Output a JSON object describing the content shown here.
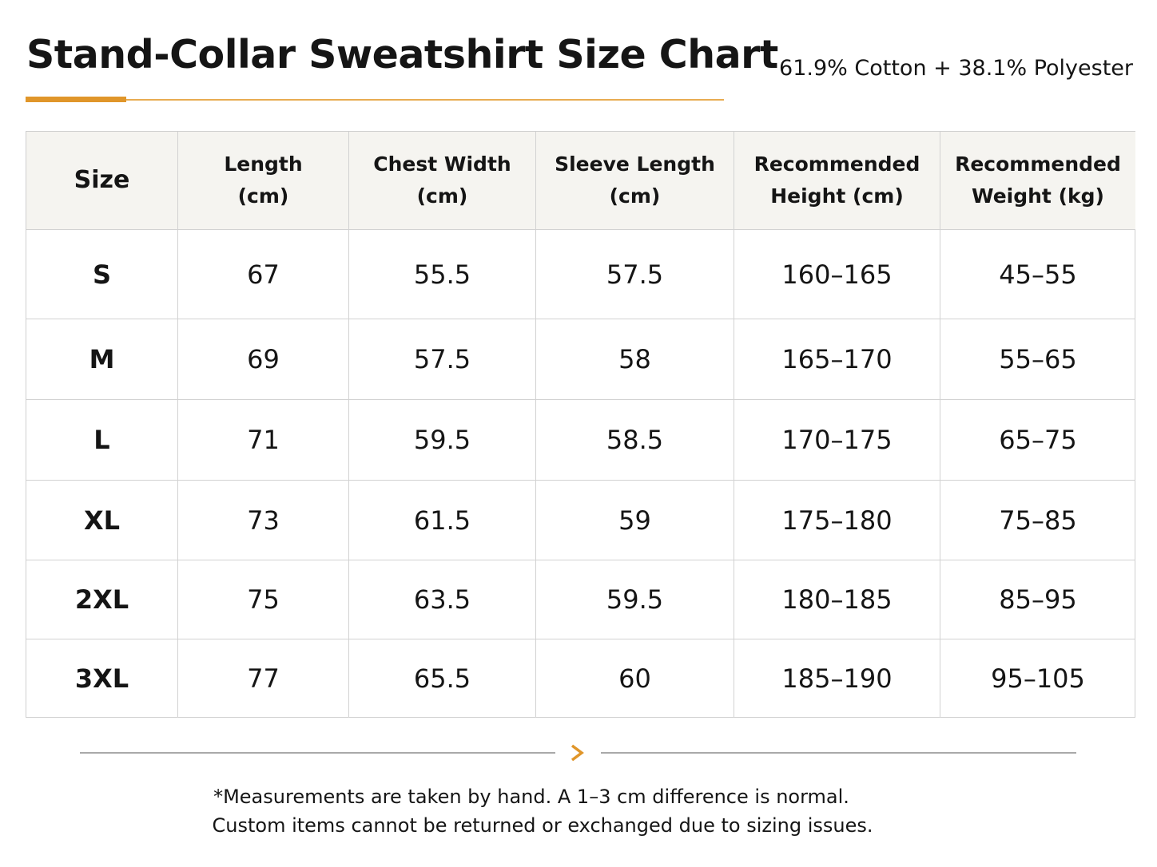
{
  "header": {
    "title": "Stand-Collar Sweatshirt Size Chart",
    "subtitle": "61.9% Cotton + 38.1% Polyester"
  },
  "table": {
    "headers": [
      [
        "Size"
      ],
      [
        "Length",
        "(cm)"
      ],
      [
        "Chest Width",
        "(cm)"
      ],
      [
        "Sleeve Length",
        "(cm)"
      ],
      [
        "Recommended",
        "Height (cm)"
      ],
      [
        "Recommended",
        "Weight (kg)"
      ]
    ],
    "rows": [
      [
        "S",
        "67",
        "55.5",
        "57.5",
        "160–165",
        "45–55"
      ],
      [
        "M",
        "69",
        "57.5",
        "58",
        "165–170",
        "55–65"
      ],
      [
        "L",
        "71",
        "59.5",
        "58.5",
        "170–175",
        "65–75"
      ],
      [
        "XL",
        "73",
        "61.5",
        "59",
        "175–180",
        "75–85"
      ],
      [
        "2XL",
        "75",
        "63.5",
        "59.5",
        "180–185",
        "85–95"
      ],
      [
        "3XL",
        "77",
        "65.5",
        "60",
        "185–190",
        "95–105"
      ]
    ]
  },
  "footnote": [
    "*Measurements are taken by hand. A 1–3 cm difference is normal.",
    "Custom items cannot be returned or exchanged due to sizing issues."
  ]
}
